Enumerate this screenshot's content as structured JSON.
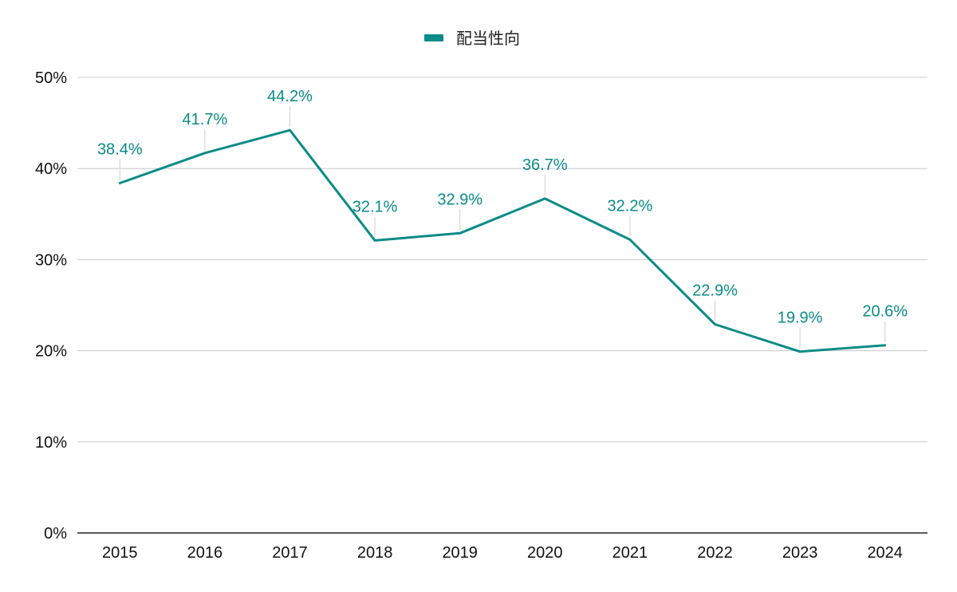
{
  "chart_data": {
    "type": "line",
    "categories": [
      "2015",
      "2016",
      "2017",
      "2018",
      "2019",
      "2020",
      "2021",
      "2022",
      "2023",
      "2024"
    ],
    "series": [
      {
        "name": "配当性向",
        "values": [
          38.4,
          41.7,
          44.2,
          32.1,
          32.9,
          36.7,
          32.2,
          22.9,
          19.9,
          20.6
        ],
        "data_labels": [
          "38.4%",
          "41.7%",
          "44.2%",
          "32.1%",
          "32.9%",
          "36.7%",
          "32.2%",
          "22.9%",
          "19.9%",
          "20.6%"
        ],
        "color": "#0a8b87"
      }
    ],
    "y_ticks": [
      {
        "value": 0,
        "label": "0%"
      },
      {
        "value": 10,
        "label": "10%"
      },
      {
        "value": 20,
        "label": "20%"
      },
      {
        "value": 30,
        "label": "30%"
      },
      {
        "value": 40,
        "label": "40%"
      },
      {
        "value": 50,
        "label": "50%"
      }
    ],
    "ylim": [
      0,
      50
    ],
    "grid": true,
    "legend_position": "top-center",
    "title": "",
    "xlabel": "",
    "ylabel": ""
  },
  "colors": {
    "series": "#0a8b87",
    "grid": "#c8c8c8",
    "axis": "#222222",
    "leader": "#d0d0d0"
  }
}
